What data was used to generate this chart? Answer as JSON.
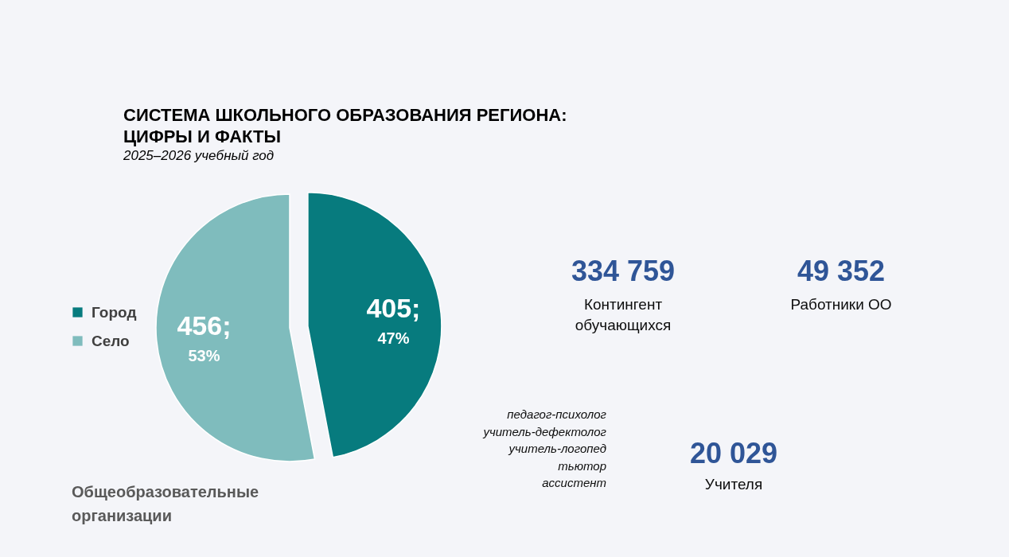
{
  "chart_data": [
    {
      "type": "pie",
      "title": "СИСТЕМА ШКОЛЬНОГО ОБРАЗОВАНИЯ РЕГИОНА: ЦИФРЫ И ФАКТЫ",
      "subtitle": "2025–2026 учебный год",
      "categories": [
        "Город",
        "Село"
      ],
      "values": [
        47,
        53
      ],
      "colors": [
        "#077b7e",
        "#7fbcbd"
      ],
      "value_labels": [
        "405; 47%",
        "456; 53%"
      ],
      "legend": "left",
      "annotations": [
        "Общеобразовательные организации"
      ]
    },
    {
      "type": "other",
      "annotations": [
        "334 759",
        "Контингент обучающихся",
        "49 352",
        "Работники ОО",
        "20 029",
        "Учителя",
        "педагог-психолог",
        "учитель-дефектолог",
        "учитель-логопед",
        "тьютор",
        "ассистент"
      ]
    }
  ]
}
